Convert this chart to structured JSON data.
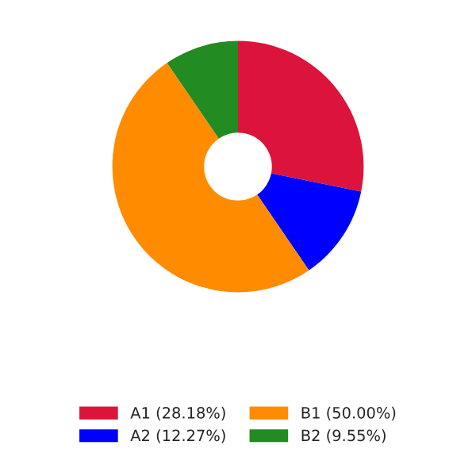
{
  "chart_data": {
    "type": "donut",
    "categories": [
      "A1 (28.18%)",
      "A2 (12.27%)",
      "B1 (50.00%)",
      "B2 (9.55%)"
    ],
    "values": [
      28.18,
      12.27,
      50.0,
      9.55
    ],
    "colors": [
      "#dc143c",
      "#0000ff",
      "#ff8c00",
      "#228b22"
    ],
    "legend": "bottom"
  }
}
